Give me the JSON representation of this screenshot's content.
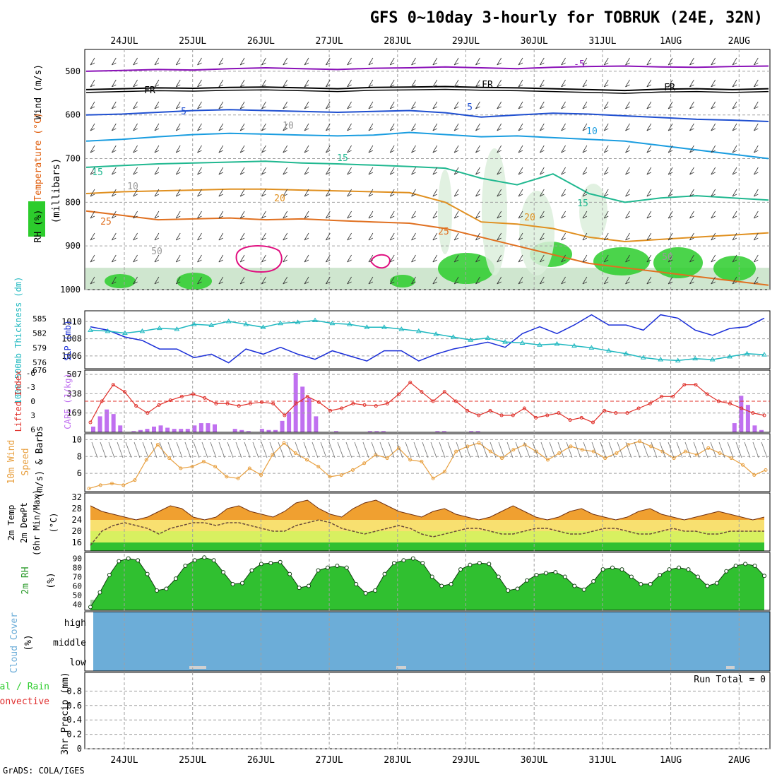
{
  "title": "GFS 0~10day 3-hourly for TOBRUK (24E, 32N)",
  "footer": "GrADS: COLA/IGES",
  "dates": [
    "24JUL",
    "25JUL",
    "26JUL",
    "27JUL",
    "28JUL",
    "29JUL",
    "30JUL",
    "31JUL",
    "1AUG",
    "2AUG"
  ],
  "colors": {
    "frame": "#000000",
    "grid": "#a0a0a0",
    "slp": "#1a2ed8",
    "thickness": "#1fb8c0",
    "lifted": "#e0302a",
    "cape": "#c070f0",
    "wind10": "#e8a040",
    "barb": "#707070",
    "temp_hot": "#e06010",
    "temp_mid": "#f0a030",
    "temp_band1": "#f8e070",
    "temp_band2": "#d8f060",
    "rh_fill": "#30c030",
    "rh_bg": "#a0c8a0",
    "cloud": "#6cadd8",
    "cloud_low": "#d0d0d0",
    "purple": "#8a10b8",
    "cyan": "#1a9de0",
    "blue": "#1f4fd0",
    "teal": "#20b890",
    "orange": "#e09020",
    "dark_orange": "#e07020",
    "magenta": "#e01080",
    "green": "#2ccc2c"
  },
  "chart_data": [
    {
      "type": "contour",
      "panel": "upper-air",
      "ylabel": "(millibars)",
      "yticks": [
        500,
        600,
        700,
        800,
        900,
        1000
      ],
      "ylim": [
        450,
        1000
      ],
      "legend": [
        "Wind (m/s)",
        "Temperature (°C)",
        "RH (%)"
      ],
      "temperature_labels": [
        "-5",
        "FR",
        "5",
        "10",
        "15",
        "20",
        "25"
      ],
      "rh_labels": [
        "10",
        "50"
      ],
      "isotherms": [
        {
          "label": "-5",
          "color": "purple",
          "p": [
            500,
            498,
            496,
            497,
            494,
            492,
            494,
            496,
            493,
            492,
            490,
            492,
            494,
            491,
            489,
            488,
            490,
            491,
            489,
            488
          ]
        },
        {
          "label": "FR",
          "color": "#000000",
          "p": [
            542,
            540,
            538,
            539,
            537,
            536,
            538,
            540,
            537,
            536,
            535,
            537,
            538,
            540,
            542,
            544,
            541,
            540,
            542,
            540
          ]
        },
        {
          "label": "5",
          "color": "blue",
          "p": [
            600,
            598,
            594,
            590,
            588,
            590,
            592,
            594,
            592,
            590,
            595,
            605,
            600,
            596,
            598,
            602,
            606,
            610,
            612,
            615
          ]
        },
        {
          "label": "10",
          "color": "cyan",
          "p": [
            660,
            656,
            650,
            645,
            642,
            644,
            646,
            648,
            646,
            640,
            645,
            650,
            648,
            652,
            656,
            660,
            670,
            680,
            690,
            700
          ]
        },
        {
          "label": "15",
          "color": "teal",
          "p": [
            720,
            716,
            712,
            710,
            708,
            706,
            710,
            712,
            715,
            718,
            722,
            745,
            760,
            735,
            780,
            800,
            790,
            785,
            790,
            795
          ]
        },
        {
          "label": "20",
          "color": "orange",
          "p": [
            780,
            776,
            774,
            772,
            770,
            770,
            772,
            774,
            776,
            778,
            800,
            845,
            850,
            860,
            880,
            890,
            885,
            880,
            875,
            870
          ]
        },
        {
          "label": "25",
          "color": "dark_orange",
          "p": [
            820,
            830,
            840,
            838,
            836,
            840,
            838,
            842,
            845,
            848,
            860,
            880,
            900,
            920,
            940,
            950,
            960,
            970,
            980,
            990
          ]
        }
      ]
    },
    {
      "type": "line",
      "panel": "slp-thickness",
      "ylabel": "SLP (mb)",
      "ylabel2": "1000-500mb Thickness (dm)",
      "slp_ticks": [
        "1010",
        "1008",
        "1006"
      ],
      "thickness_ticks": [
        "585",
        "582",
        "579",
        "576"
      ],
      "extra_label": "676",
      "series": [
        {
          "name": "SLP",
          "color": "slp",
          "values": [
            1009.4,
            1009.0,
            1008.2,
            1007.8,
            1006.8,
            1006.8,
            1005.8,
            1006.2,
            1005.2,
            1006.8,
            1006.2,
            1007.0,
            1006.2,
            1005.6,
            1006.6,
            1006.0,
            1005.4,
            1006.6,
            1006.6,
            1005.4,
            1006.2,
            1006.8,
            1007.2,
            1007.6,
            1007.0,
            1008.6,
            1009.4,
            1008.6,
            1009.6,
            1010.8,
            1009.6,
            1009.6,
            1009.0,
            1010.8,
            1010.4,
            1009.0,
            1008.4,
            1009.2,
            1009.4,
            1010.4
          ]
        },
        {
          "name": "Thickness",
          "color": "thickness",
          "values": [
            582.6,
            582.4,
            582.0,
            582.4,
            583.0,
            582.8,
            583.8,
            583.6,
            584.4,
            583.8,
            583.2,
            584.0,
            584.2,
            584.6,
            584.0,
            583.8,
            583.2,
            583.2,
            582.8,
            582.4,
            581.8,
            581.2,
            580.6,
            581.0,
            580.2,
            580.0,
            579.6,
            579.8,
            579.4,
            579.0,
            578.4,
            577.8,
            577.0,
            576.6,
            576.4,
            576.8,
            576.6,
            577.2,
            577.8,
            577.6
          ]
        }
      ]
    },
    {
      "type": "bar+line",
      "panel": "cape-li",
      "ylabel": "CAPE (J/kg)",
      "ylabel2": "Lifted Index",
      "cape_ticks": [
        "507",
        "338",
        "169"
      ],
      "li_ticks": [
        "-6",
        "-3",
        "0",
        "3",
        "6"
      ],
      "cape": [
        25,
        70,
        100,
        80,
        30,
        0,
        5,
        10,
        15,
        25,
        30,
        20,
        15,
        15,
        15,
        30,
        40,
        40,
        35,
        0,
        0,
        15,
        10,
        5,
        0,
        15,
        10,
        10,
        50,
        90,
        260,
        200,
        150,
        70,
        0,
        0,
        5,
        0,
        0,
        0,
        0,
        5,
        5,
        5,
        0,
        0,
        0,
        0,
        0,
        0,
        0,
        5,
        5,
        0,
        0,
        0,
        5,
        5,
        0,
        0,
        0,
        0,
        0,
        0,
        0,
        0,
        0,
        0,
        0,
        0,
        0,
        0,
        0,
        0,
        0,
        0,
        0,
        0,
        0,
        0,
        0,
        0,
        0,
        0,
        0,
        0,
        0,
        0,
        0,
        0,
        0,
        0,
        0,
        0,
        0,
        40,
        160,
        120,
        30,
        10
      ],
      "lifted_index": [
        4.5,
        0,
        -3.5,
        -2,
        1,
        2.5,
        0.8,
        -0.2,
        -1,
        -1.5,
        -0.7,
        0.5,
        0.5,
        1,
        0.5,
        0.2,
        0.5,
        3,
        0.5,
        -1,
        0.2,
        2,
        1.5,
        0.5,
        0.8,
        1,
        0.5,
        -1.5,
        -4,
        -2,
        0,
        -2,
        0,
        2,
        3,
        2,
        3,
        3,
        1.5,
        3.5,
        3,
        2.5,
        4,
        3.5,
        4.5,
        2,
        2.5,
        2.5,
        1.5,
        0.5,
        -1,
        -1,
        -3.5,
        -3.5,
        -1.5,
        0,
        0.5,
        1.5,
        2.5,
        3
      ]
    },
    {
      "type": "line",
      "panel": "wind10",
      "ylabel": "10m Wind Speed (m/s) & Barbs",
      "yticks": [
        "10",
        "8",
        "6"
      ],
      "values": [
        4.2,
        4.6,
        4.8,
        4.6,
        5.2,
        7.6,
        9.4,
        7.8,
        6.6,
        6.8,
        7.4,
        6.8,
        5.6,
        5.4,
        6.6,
        5.8,
        8.2,
        9.6,
        8.4,
        7.6,
        6.8,
        5.6,
        5.8,
        6.4,
        7.2,
        8.2,
        7.8,
        9.0,
        7.6,
        7.4,
        5.4,
        6.2,
        8.6,
        9.2,
        9.6,
        8.6,
        7.8,
        8.8,
        9.4,
        8.6,
        7.6,
        8.4,
        9.2,
        8.8,
        8.6,
        7.8,
        8.4,
        9.4,
        9.8,
        9.2,
        8.6,
        7.8,
        8.6,
        8.2,
        9.0,
        8.4,
        7.8,
        7.0,
        5.8,
        6.4
      ]
    },
    {
      "type": "area",
      "panel": "temp2m",
      "ylabel": "2m Temp 2m DewPt (6hr Min/Max) (°C)",
      "yticks": [
        "32",
        "28",
        "24",
        "20",
        "16"
      ],
      "temp": [
        29,
        27,
        26,
        25,
        24,
        25,
        27,
        29,
        28,
        25,
        24,
        25,
        28,
        29,
        27,
        26,
        25,
        27,
        30,
        31,
        28,
        26,
        25,
        28,
        30,
        31,
        29,
        27,
        26,
        25,
        27,
        28,
        26,
        25,
        24,
        25,
        27,
        29,
        27,
        25,
        24,
        25,
        27,
        28,
        26,
        25,
        24,
        25,
        27,
        28,
        26,
        25,
        24,
        25,
        26,
        27,
        26,
        25,
        24,
        25
      ],
      "dewpoint": [
        15,
        20,
        22,
        23,
        22,
        21,
        19,
        21,
        22,
        23,
        23,
        22,
        23,
        23,
        22,
        21,
        20,
        20,
        22,
        23,
        24,
        23,
        21,
        20,
        19,
        20,
        21,
        22,
        21,
        19,
        18,
        19,
        20,
        21,
        21,
        20,
        19,
        19,
        20,
        21,
        21,
        20,
        19,
        19,
        20,
        21,
        21,
        20,
        19,
        19,
        20,
        21,
        20,
        20,
        19,
        19,
        20,
        20,
        20,
        20
      ]
    },
    {
      "type": "area",
      "panel": "rh2m",
      "ylabel": "2m RH (%)",
      "yticks": [
        "90",
        "80",
        "70",
        "60",
        "50",
        "40"
      ],
      "values": [
        37,
        53,
        72,
        87,
        90,
        88,
        73,
        55,
        57,
        68,
        82,
        88,
        91,
        88,
        75,
        62,
        63,
        77,
        84,
        85,
        86,
        73,
        58,
        60,
        77,
        80,
        82,
        80,
        62,
        52,
        55,
        73,
        85,
        88,
        90,
        85,
        70,
        60,
        62,
        78,
        83,
        85,
        84,
        70,
        55,
        57,
        66,
        72,
        74,
        75,
        70,
        60,
        56,
        65,
        78,
        80,
        78,
        70,
        62,
        62,
        72,
        78,
        80,
        78,
        70,
        60,
        63,
        76,
        82,
        84,
        82,
        71
      ]
    },
    {
      "type": "area",
      "panel": "cloud",
      "ylabel": "Cloud Cover (%)",
      "levels": [
        "high",
        "middle",
        "low"
      ]
    },
    {
      "type": "bar",
      "panel": "precip",
      "ylabel": "3hr Precip (mm)",
      "legend": [
        "Total / Rain",
        "Convective"
      ],
      "yticks": [
        "0.8",
        "0.6",
        "0.4",
        "0.2",
        "0"
      ],
      "run_total": "Run Total = 0",
      "values": []
    }
  ],
  "panel_labels": {
    "wind": "Wind (m/s)",
    "temperature": "Temperature (°C)",
    "rh": "RH (%)",
    "millibars": "(millibars)",
    "slp": "SLP (mb)",
    "thickness": "1000-500mb Thickness (dm)",
    "cape": "CAPE (J/kg)",
    "lifted": "Lifted Index",
    "wind10a": "10m Wind",
    "wind10b": "Speed",
    "wind10c": "(m/s) & Barbs",
    "temp_a": "2m Temp",
    "temp_b": "2m DewPt",
    "temp_c": "(6hr Min/Max)",
    "temp_d": "(°C)",
    "rh2m": "2m RH",
    "pct": "(%)",
    "cloud_a": "Cloud Cover",
    "cloud_b": "(%)",
    "precip_a": "Total / Rain",
    "precip_b": "Convective",
    "precip_c": "3hr Precip (mm)"
  }
}
